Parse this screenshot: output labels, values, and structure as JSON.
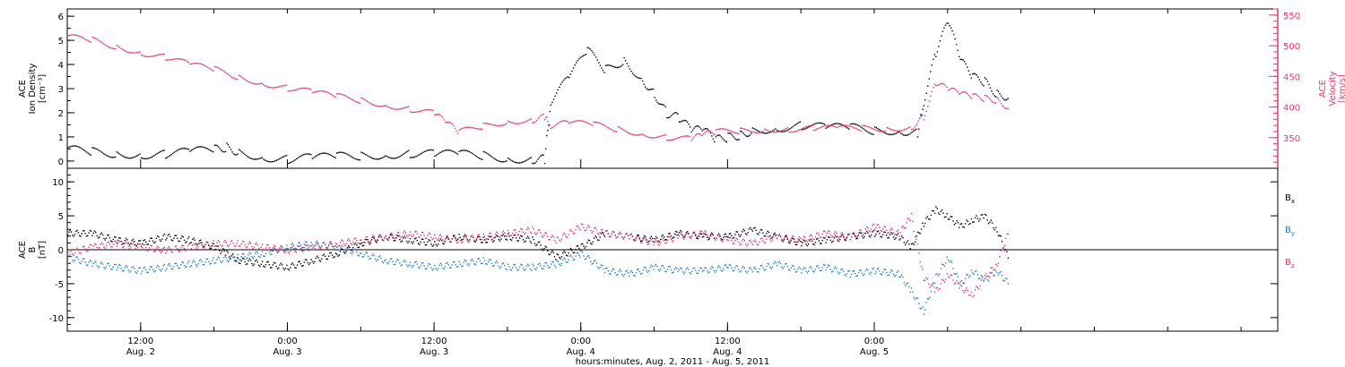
{
  "colors": {
    "density": "#000000",
    "velocity": "#e8386b",
    "bx": "#000000",
    "by": "#1f7fd8",
    "bz": "#e8386b"
  },
  "chart_data": [
    {
      "type": "scatter",
      "panel": "top",
      "ylabel_left": [
        "ACE",
        "Ion Density",
        "[cm⁻³]"
      ],
      "ylabel_right": [
        "ACE",
        "Velocity",
        "[km/s]"
      ],
      "y_left_ticks": [
        "0",
        "1",
        "2",
        "3",
        "4",
        "5",
        "6"
      ],
      "y_left_range": [
        -0.3,
        6.3
      ],
      "y_right_ticks": [
        "350",
        "400",
        "450",
        "500",
        "550"
      ],
      "y_right_range": [
        300,
        560
      ],
      "x_range_hours": [
        6,
        105
      ],
      "series": [
        {
          "key": "density",
          "axis": "left",
          "points": [
            [
              6,
              0.5
            ],
            [
              8,
              0.4
            ],
            [
              10,
              0.35
            ],
            [
              12,
              0.3
            ],
            [
              14,
              0.3
            ],
            [
              16,
              0.4
            ],
            [
              18,
              0.5
            ],
            [
              19,
              0.6
            ],
            [
              20,
              0.4
            ],
            [
              22,
              0.2
            ],
            [
              24,
              0.1
            ],
            [
              26,
              0.15
            ],
            [
              28,
              0.2
            ],
            [
              30,
              0.25
            ],
            [
              32,
              0.3
            ],
            [
              34,
              0.35
            ],
            [
              36,
              0.3
            ],
            [
              38,
              0.3
            ],
            [
              40,
              0.25
            ],
            [
              42,
              0.15
            ],
            [
              44,
              0.1
            ],
            [
              45,
              0.1
            ],
            [
              45.5,
              2.5
            ],
            [
              47,
              3.5
            ],
            [
              48.5,
              4.6
            ],
            [
              50,
              3.8
            ],
            [
              51.5,
              4.2
            ],
            [
              53,
              3.4
            ],
            [
              54,
              2.8
            ],
            [
              55,
              2.0
            ],
            [
              56,
              1.8
            ],
            [
              57,
              1.3
            ],
            [
              58,
              1.3
            ],
            [
              59,
              0.9
            ],
            [
              60,
              1.0
            ],
            [
              61,
              1.1
            ],
            [
              62,
              1.3
            ],
            [
              64,
              1.4
            ],
            [
              66,
              1.5
            ],
            [
              68,
              1.4
            ],
            [
              70,
              1.4
            ],
            [
              72,
              1.3
            ],
            [
              74,
              1.3
            ],
            [
              75.5,
              1.2
            ],
            [
              76,
              2.5
            ],
            [
              77,
              4.5
            ],
            [
              78,
              5.8
            ],
            [
              79,
              4.2
            ],
            [
              80,
              3.5
            ],
            [
              81,
              3.3
            ],
            [
              82,
              2.8
            ],
            [
              83,
              2.7
            ]
          ]
        },
        {
          "key": "velocity",
          "axis": "right",
          "points": [
            [
              6,
              515
            ],
            [
              8,
              510
            ],
            [
              10,
              500
            ],
            [
              12,
              490
            ],
            [
              14,
              482
            ],
            [
              16,
              470
            ],
            [
              18,
              462
            ],
            [
              20,
              450
            ],
            [
              22,
              440
            ],
            [
              24,
              432
            ],
            [
              26,
              425
            ],
            [
              28,
              418
            ],
            [
              30,
              412
            ],
            [
              32,
              405
            ],
            [
              34,
              398
            ],
            [
              36,
              390
            ],
            [
              37,
              375
            ],
            [
              38,
              360
            ],
            [
              40,
              370
            ],
            [
              42,
              378
            ],
            [
              44,
              380
            ],
            [
              45,
              385
            ],
            [
              45.5,
              370
            ],
            [
              47,
              375
            ],
            [
              49,
              372
            ],
            [
              51,
              365
            ],
            [
              53,
              358
            ],
            [
              55,
              352
            ],
            [
              57,
              348
            ],
            [
              58,
              356
            ],
            [
              59,
              360
            ],
            [
              61,
              362
            ],
            [
              63,
              365
            ],
            [
              65,
              365
            ],
            [
              67,
              366
            ],
            [
              69,
              366
            ],
            [
              71,
              366
            ],
            [
              73,
              366
            ],
            [
              75,
              368
            ],
            [
              76,
              385
            ],
            [
              77,
              440
            ],
            [
              78,
              430
            ],
            [
              79,
              422
            ],
            [
              80,
              418
            ],
            [
              81,
              415
            ],
            [
              82,
              412
            ],
            [
              83,
              400
            ]
          ]
        }
      ]
    },
    {
      "type": "line",
      "panel": "bottom",
      "ylabel_left": [
        "ACE",
        "B",
        "[nT]"
      ],
      "y_ticks": [
        "-10",
        "-5",
        "0",
        "5",
        "10"
      ],
      "y_range": [
        -12,
        12
      ],
      "x_range_hours": [
        6,
        105
      ],
      "x_tick_labels": [
        [
          "12:00",
          "Aug. 2"
        ],
        [
          "0:00",
          "Aug. 3"
        ],
        [
          "12:00",
          "Aug. 3"
        ],
        [
          "0:00",
          "Aug. 4"
        ],
        [
          "12:00",
          "Aug. 4"
        ],
        [
          "0:00",
          "Aug. 5"
        ]
      ],
      "x_tick_hours": [
        12,
        24,
        36,
        48,
        60,
        72
      ],
      "xlabel": "hours:minutes, Aug.  2, 2011 - Aug.  5, 2011",
      "legend": [
        {
          "key": "bx",
          "label": "B",
          "sub": "x"
        },
        {
          "key": "by",
          "label": "B",
          "sub": "y"
        },
        {
          "key": "bz",
          "label": "B",
          "sub": "z"
        }
      ],
      "series": [
        {
          "key": "bx",
          "points": [
            [
              6,
              2.5
            ],
            [
              8,
              2.5
            ],
            [
              10,
              1.5
            ],
            [
              12,
              1.0
            ],
            [
              14,
              2.0
            ],
            [
              16,
              1.5
            ],
            [
              18,
              0.5
            ],
            [
              19,
              -0.5
            ],
            [
              20,
              -1.5
            ],
            [
              22,
              -2.0
            ],
            [
              24,
              -2.5
            ],
            [
              26,
              -1.5
            ],
            [
              28,
              -0.5
            ],
            [
              30,
              1.0
            ],
            [
              32,
              2.0
            ],
            [
              34,
              1.5
            ],
            [
              36,
              1.0
            ],
            [
              38,
              2.0
            ],
            [
              40,
              1.5
            ],
            [
              42,
              2.0
            ],
            [
              44,
              1.5
            ],
            [
              46,
              -1.0
            ],
            [
              48,
              0.5
            ],
            [
              50,
              2.5
            ],
            [
              52,
              2.0
            ],
            [
              54,
              1.5
            ],
            [
              56,
              2.5
            ],
            [
              58,
              2.0
            ],
            [
              60,
              2.0
            ],
            [
              62,
              3.0
            ],
            [
              64,
              2.0
            ],
            [
              66,
              1.0
            ],
            [
              68,
              1.5
            ],
            [
              70,
              2.0
            ],
            [
              72,
              2.5
            ],
            [
              74,
              2.0
            ],
            [
              75,
              0.5
            ],
            [
              76,
              4.0
            ],
            [
              77,
              6.0
            ],
            [
              78,
              5.0
            ],
            [
              79,
              3.5
            ],
            [
              80,
              4.5
            ],
            [
              81,
              5.0
            ],
            [
              82,
              3.0
            ],
            [
              83,
              -1.5
            ]
          ]
        },
        {
          "key": "by",
          "points": [
            [
              6,
              -1.0
            ],
            [
              8,
              -2.0
            ],
            [
              10,
              -2.5
            ],
            [
              12,
              -3.0
            ],
            [
              14,
              -2.5
            ],
            [
              16,
              -2.0
            ],
            [
              18,
              -1.5
            ],
            [
              20,
              -1.0
            ],
            [
              22,
              -0.5
            ],
            [
              24,
              0.5
            ],
            [
              26,
              1.0
            ],
            [
              28,
              0.5
            ],
            [
              30,
              -0.5
            ],
            [
              32,
              -1.5
            ],
            [
              34,
              -2.0
            ],
            [
              36,
              -2.5
            ],
            [
              38,
              -2.0
            ],
            [
              40,
              -1.5
            ],
            [
              42,
              -2.5
            ],
            [
              44,
              -2.5
            ],
            [
              46,
              -2.0
            ],
            [
              48,
              -0.5
            ],
            [
              50,
              -3.0
            ],
            [
              52,
              -3.5
            ],
            [
              54,
              -2.5
            ],
            [
              56,
              -3.0
            ],
            [
              58,
              -3.0
            ],
            [
              60,
              -2.5
            ],
            [
              62,
              -3.0
            ],
            [
              64,
              -2.0
            ],
            [
              66,
              -3.0
            ],
            [
              68,
              -2.5
            ],
            [
              70,
              -3.5
            ],
            [
              72,
              -3.0
            ],
            [
              74,
              -3.5
            ],
            [
              75,
              -6.0
            ],
            [
              76,
              -9.0
            ],
            [
              77,
              -4.0
            ],
            [
              78,
              -1.0
            ],
            [
              79,
              -5.0
            ],
            [
              80,
              -3.0
            ],
            [
              81,
              -4.5
            ],
            [
              82,
              -3.0
            ],
            [
              83,
              -5.0
            ]
          ]
        },
        {
          "key": "bz",
          "points": [
            [
              6,
              -0.5
            ],
            [
              8,
              0.5
            ],
            [
              10,
              1.0
            ],
            [
              12,
              0.5
            ],
            [
              14,
              0.0
            ],
            [
              16,
              0.5
            ],
            [
              18,
              1.0
            ],
            [
              20,
              1.0
            ],
            [
              22,
              0.5
            ],
            [
              24,
              0.0
            ],
            [
              26,
              0.5
            ],
            [
              28,
              1.0
            ],
            [
              30,
              1.5
            ],
            [
              32,
              2.0
            ],
            [
              34,
              2.5
            ],
            [
              36,
              2.0
            ],
            [
              38,
              1.5
            ],
            [
              40,
              2.0
            ],
            [
              42,
              2.5
            ],
            [
              44,
              3.0
            ],
            [
              46,
              1.5
            ],
            [
              48,
              3.5
            ],
            [
              50,
              2.5
            ],
            [
              52,
              2.0
            ],
            [
              54,
              1.0
            ],
            [
              56,
              2.0
            ],
            [
              58,
              2.5
            ],
            [
              60,
              1.5
            ],
            [
              62,
              1.0
            ],
            [
              64,
              2.0
            ],
            [
              66,
              1.5
            ],
            [
              68,
              2.5
            ],
            [
              70,
              2.0
            ],
            [
              72,
              3.5
            ],
            [
              74,
              2.5
            ],
            [
              75,
              5.0
            ],
            [
              76,
              -4.0
            ],
            [
              77,
              -6.0
            ],
            [
              78,
              -3.5
            ],
            [
              79,
              -5.5
            ],
            [
              80,
              -6.5
            ],
            [
              81,
              -4.0
            ],
            [
              82,
              -2.0
            ],
            [
              83,
              3.0
            ]
          ]
        }
      ]
    }
  ]
}
